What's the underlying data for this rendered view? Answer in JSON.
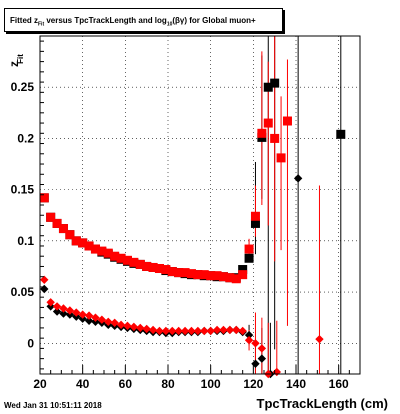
{
  "title": {
    "prefix": "Fitted  z",
    "sub1": "Fit",
    "middle": "  versus TpcTrackLength and log",
    "sub2": "10",
    "suffix": "(βγ) for Global muon+"
  },
  "timestamp": "Wed Jan 31 10:51:11 2018",
  "colors": {
    "black_series": "#000000",
    "red_series": "#ff0000",
    "frame": "#000000",
    "grid": "#000000"
  },
  "chart_data": {
    "type": "scatter",
    "title": "Fitted z_Fit versus TpcTrackLength and log10(βγ) for Global muon+",
    "xlabel": "TpcTrackLength (cm)",
    "ylabel": "z_Fit",
    "xlim": [
      20,
      170
    ],
    "ylim": [
      -0.03,
      0.3
    ],
    "grid": true,
    "x_ticks": [
      20,
      40,
      60,
      80,
      100,
      120,
      140,
      160
    ],
    "y_ticks": [
      0,
      0.05,
      0.1,
      0.15,
      0.2,
      0.25
    ],
    "x_tick_labels": [
      "20",
      "40",
      "60",
      "80",
      "100",
      "120",
      "140",
      "160"
    ],
    "y_tick_labels": [
      "0",
      "0.05",
      "0.1",
      "0.15",
      "0.2",
      "0.25"
    ],
    "series": [
      {
        "color": "#000000",
        "marker": "square",
        "points": [
          [
            22,
            0.142
          ],
          [
            25,
            0.123
          ],
          [
            28,
            0.117
          ],
          [
            31,
            0.112
          ],
          [
            34,
            0.106
          ],
          [
            37,
            0.1
          ],
          [
            40,
            0.098
          ],
          [
            43,
            0.095
          ],
          [
            46,
            0.092
          ],
          [
            49,
            0.089
          ],
          [
            52,
            0.087
          ],
          [
            55,
            0.084
          ],
          [
            58,
            0.082
          ],
          [
            61,
            0.08
          ],
          [
            64,
            0.078
          ],
          [
            67,
            0.077
          ],
          [
            70,
            0.075
          ],
          [
            73,
            0.074
          ],
          [
            76,
            0.073
          ],
          [
            79,
            0.071
          ],
          [
            82,
            0.07
          ],
          [
            85,
            0.069
          ],
          [
            88,
            0.068
          ],
          [
            91,
            0.067
          ],
          [
            94,
            0.067
          ],
          [
            97,
            0.066
          ],
          [
            100,
            0.066
          ],
          [
            103,
            0.065
          ],
          [
            106,
            0.065
          ],
          [
            109,
            0.064
          ],
          [
            112,
            0.064
          ],
          [
            115,
            0.072
          ],
          [
            118,
            0.083
          ],
          [
            121,
            0.117
          ],
          [
            124,
            0.201
          ],
          [
            127,
            0.25
          ],
          [
            130,
            0.254
          ],
          [
            161,
            0.204
          ]
        ],
        "errors": [
          [
            0,
            0
          ],
          [
            0,
            0
          ],
          [
            0,
            0
          ],
          [
            0,
            0
          ],
          [
            0,
            0
          ],
          [
            0,
            0
          ],
          [
            0,
            0
          ],
          [
            0,
            0
          ],
          [
            0,
            0
          ],
          [
            0,
            0
          ],
          [
            0,
            0
          ],
          [
            0,
            0
          ],
          [
            0,
            0
          ],
          [
            0,
            0
          ],
          [
            0,
            0
          ],
          [
            0,
            0
          ],
          [
            0,
            0
          ],
          [
            0,
            0
          ],
          [
            0,
            0
          ],
          [
            0,
            0
          ],
          [
            0,
            0
          ],
          [
            0,
            0
          ],
          [
            0,
            0
          ],
          [
            0,
            0
          ],
          [
            0,
            0
          ],
          [
            0,
            0
          ],
          [
            0,
            0
          ],
          [
            0,
            0
          ],
          [
            0,
            0
          ],
          [
            0,
            0
          ],
          [
            0,
            0
          ],
          [
            0,
            0
          ],
          [
            0,
            0
          ],
          [
            0.03,
            0.06
          ],
          [
            0.06,
            0.08
          ],
          [
            0.28,
            0.06
          ],
          [
            0.26,
            0.05
          ],
          [
            0.24,
            0.1
          ]
        ]
      },
      {
        "color": "#ff0000",
        "marker": "square",
        "points": [
          [
            22,
            0.142
          ],
          [
            25,
            0.123
          ],
          [
            28,
            0.117
          ],
          [
            31,
            0.112
          ],
          [
            34,
            0.106
          ],
          [
            37,
            0.1
          ],
          [
            40,
            0.098
          ],
          [
            43,
            0.095
          ],
          [
            46,
            0.092
          ],
          [
            49,
            0.09
          ],
          [
            52,
            0.088
          ],
          [
            55,
            0.085
          ],
          [
            58,
            0.083
          ],
          [
            61,
            0.081
          ],
          [
            64,
            0.079
          ],
          [
            67,
            0.077
          ],
          [
            70,
            0.075
          ],
          [
            73,
            0.074
          ],
          [
            76,
            0.073
          ],
          [
            79,
            0.072
          ],
          [
            82,
            0.07
          ],
          [
            85,
            0.069
          ],
          [
            88,
            0.069
          ],
          [
            91,
            0.068
          ],
          [
            94,
            0.067
          ],
          [
            97,
            0.067
          ],
          [
            100,
            0.066
          ],
          [
            103,
            0.066
          ],
          [
            106,
            0.065
          ],
          [
            109,
            0.064
          ],
          [
            112,
            0.063
          ],
          [
            115,
            0.067
          ],
          [
            118,
            0.092
          ],
          [
            121,
            0.124
          ],
          [
            124,
            0.205
          ],
          [
            127,
            0.215
          ],
          [
            130,
            0.2
          ],
          [
            133,
            0.181
          ],
          [
            136,
            0.217
          ]
        ],
        "errors": [
          [
            0,
            0
          ],
          [
            0,
            0
          ],
          [
            0,
            0
          ],
          [
            0,
            0
          ],
          [
            0,
            0
          ],
          [
            0,
            0
          ],
          [
            0,
            0
          ],
          [
            0,
            0
          ],
          [
            0,
            0
          ],
          [
            0,
            0
          ],
          [
            0,
            0
          ],
          [
            0,
            0
          ],
          [
            0,
            0
          ],
          [
            0,
            0
          ],
          [
            0,
            0
          ],
          [
            0,
            0
          ],
          [
            0,
            0
          ],
          [
            0,
            0
          ],
          [
            0,
            0
          ],
          [
            0,
            0
          ],
          [
            0,
            0
          ],
          [
            0,
            0
          ],
          [
            0,
            0
          ],
          [
            0,
            0
          ],
          [
            0,
            0
          ],
          [
            0,
            0
          ],
          [
            0,
            0
          ],
          [
            0,
            0
          ],
          [
            0,
            0
          ],
          [
            0,
            0
          ],
          [
            0,
            0
          ],
          [
            0,
            0
          ],
          [
            0.005,
            0.01
          ],
          [
            0.02,
            0.03
          ],
          [
            0.07,
            0.08
          ],
          [
            0.1,
            0.06
          ],
          [
            0.12,
            0.1
          ],
          [
            0.09,
            0.06
          ],
          [
            0.2,
            0.06
          ]
        ]
      },
      {
        "color": "#000000",
        "marker": "diamond",
        "points": [
          [
            22,
            0.053
          ],
          [
            25,
            0.036
          ],
          [
            28,
            0.031
          ],
          [
            31,
            0.029
          ],
          [
            34,
            0.028
          ],
          [
            37,
            0.026
          ],
          [
            40,
            0.024
          ],
          [
            43,
            0.022
          ],
          [
            46,
            0.021
          ],
          [
            49,
            0.02
          ],
          [
            52,
            0.018
          ],
          [
            55,
            0.017
          ],
          [
            58,
            0.016
          ],
          [
            61,
            0.015
          ],
          [
            64,
            0.014
          ],
          [
            67,
            0.013
          ],
          [
            70,
            0.012
          ],
          [
            73,
            0.011
          ],
          [
            76,
            0.011
          ],
          [
            79,
            0.01
          ],
          [
            82,
            0.01
          ],
          [
            85,
            0.011
          ],
          [
            88,
            0.011
          ],
          [
            91,
            0.011
          ],
          [
            94,
            0.011
          ],
          [
            97,
            0.012
          ],
          [
            100,
            0.012
          ],
          [
            103,
            0.012
          ],
          [
            106,
            0.012
          ],
          [
            109,
            0.013
          ],
          [
            112,
            0.013
          ],
          [
            115,
            0.011
          ],
          [
            118,
            0.008
          ],
          [
            121,
            -0.02
          ],
          [
            124,
            -0.015
          ],
          [
            128,
            -0.03
          ],
          [
            141,
            0.161
          ]
        ],
        "errors": [
          [
            0,
            0
          ],
          [
            0,
            0
          ],
          [
            0,
            0
          ],
          [
            0,
            0
          ],
          [
            0,
            0
          ],
          [
            0,
            0
          ],
          [
            0,
            0
          ],
          [
            0,
            0
          ],
          [
            0,
            0
          ],
          [
            0,
            0
          ],
          [
            0,
            0
          ],
          [
            0,
            0
          ],
          [
            0,
            0
          ],
          [
            0,
            0
          ],
          [
            0,
            0
          ],
          [
            0,
            0
          ],
          [
            0,
            0
          ],
          [
            0,
            0
          ],
          [
            0,
            0
          ],
          [
            0,
            0
          ],
          [
            0,
            0
          ],
          [
            0,
            0
          ],
          [
            0,
            0
          ],
          [
            0,
            0
          ],
          [
            0,
            0
          ],
          [
            0,
            0
          ],
          [
            0,
            0
          ],
          [
            0,
            0
          ],
          [
            0,
            0
          ],
          [
            0,
            0
          ],
          [
            0,
            0
          ],
          [
            0,
            0
          ],
          [
            0.01,
            0.01
          ],
          [
            0.02,
            0.02
          ],
          [
            0.03,
            0.03
          ],
          [
            0.04,
            0.05
          ],
          [
            0.2,
            0.14
          ]
        ]
      },
      {
        "color": "#ff0000",
        "marker": "diamond",
        "points": [
          [
            22,
            0.062
          ],
          [
            25,
            0.04
          ],
          [
            28,
            0.036
          ],
          [
            31,
            0.034
          ],
          [
            34,
            0.032
          ],
          [
            37,
            0.03
          ],
          [
            40,
            0.028
          ],
          [
            43,
            0.027
          ],
          [
            46,
            0.025
          ],
          [
            49,
            0.023
          ],
          [
            52,
            0.021
          ],
          [
            55,
            0.02
          ],
          [
            58,
            0.018
          ],
          [
            61,
            0.017
          ],
          [
            64,
            0.016
          ],
          [
            67,
            0.015
          ],
          [
            70,
            0.014
          ],
          [
            73,
            0.013
          ],
          [
            76,
            0.012
          ],
          [
            79,
            0.012
          ],
          [
            82,
            0.012
          ],
          [
            85,
            0.012
          ],
          [
            88,
            0.012
          ],
          [
            91,
            0.012
          ],
          [
            94,
            0.012
          ],
          [
            97,
            0.012
          ],
          [
            100,
            0.012
          ],
          [
            103,
            0.013
          ],
          [
            106,
            0.013
          ],
          [
            109,
            0.013
          ],
          [
            112,
            0.013
          ],
          [
            115,
            0.012
          ],
          [
            118,
            0.003
          ],
          [
            121,
            0.0
          ],
          [
            124,
            -0.005
          ],
          [
            127,
            -0.03
          ],
          [
            131,
            -0.028
          ],
          [
            151,
            0.004
          ]
        ],
        "errors": [
          [
            0,
            0
          ],
          [
            0,
            0
          ],
          [
            0,
            0
          ],
          [
            0,
            0
          ],
          [
            0,
            0
          ],
          [
            0,
            0
          ],
          [
            0,
            0
          ],
          [
            0,
            0
          ],
          [
            0,
            0
          ],
          [
            0,
            0
          ],
          [
            0,
            0
          ],
          [
            0,
            0
          ],
          [
            0,
            0
          ],
          [
            0,
            0
          ],
          [
            0,
            0
          ],
          [
            0,
            0
          ],
          [
            0,
            0
          ],
          [
            0,
            0
          ],
          [
            0,
            0
          ],
          [
            0,
            0
          ],
          [
            0,
            0
          ],
          [
            0,
            0
          ],
          [
            0,
            0
          ],
          [
            0,
            0
          ],
          [
            0,
            0
          ],
          [
            0,
            0
          ],
          [
            0,
            0
          ],
          [
            0,
            0
          ],
          [
            0,
            0
          ],
          [
            0,
            0
          ],
          [
            0,
            0
          ],
          [
            0,
            0
          ],
          [
            0.01,
            0.01
          ],
          [
            0.03,
            0.03
          ],
          [
            0.03,
            0.03
          ],
          [
            0.04,
            0.05
          ],
          [
            0.05,
            0.05
          ],
          [
            0.15,
            0.15
          ]
        ]
      }
    ]
  }
}
